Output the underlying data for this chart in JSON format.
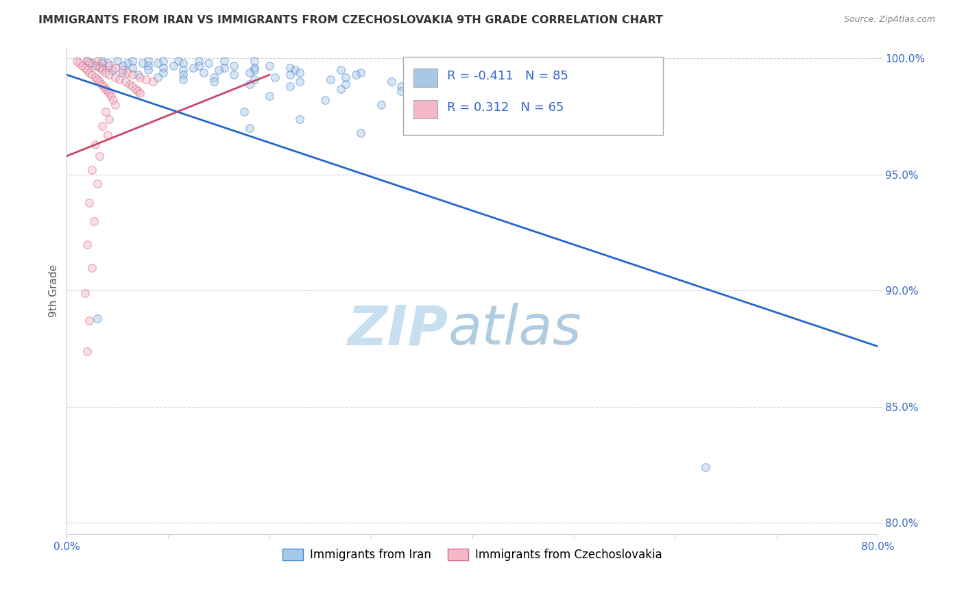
{
  "title": "IMMIGRANTS FROM IRAN VS IMMIGRANTS FROM CZECHOSLOVAKIA 9TH GRADE CORRELATION CHART",
  "source": "Source: ZipAtlas.com",
  "ylabel": "9th Grade",
  "xlim": [
    0.0,
    0.8
  ],
  "ylim": [
    0.795,
    1.005
  ],
  "x_ticks": [
    0.0,
    0.1,
    0.2,
    0.3,
    0.4,
    0.5,
    0.6,
    0.7,
    0.8
  ],
  "x_tick_labels": [
    "0.0%",
    "",
    "",
    "",
    "",
    "",
    "",
    "",
    "80.0%"
  ],
  "y_ticks": [
    0.8,
    0.85,
    0.9,
    0.95,
    1.0
  ],
  "y_tick_labels": [
    "80.0%",
    "85.0%",
    "90.0%",
    "95.0%",
    "100.0%"
  ],
  "legend_r_entries": [
    {
      "color": "#a8c8e8",
      "R": "-0.411",
      "N": "85"
    },
    {
      "color": "#f4b8c8",
      "R": "0.312",
      "N": "65"
    }
  ],
  "legend_bottom": [
    {
      "label": "Immigrants from Iran",
      "facecolor": "#a8c8e8",
      "edgecolor": "#4488cc"
    },
    {
      "label": "Immigrants from Czechoslovakia",
      "facecolor": "#f4b8c8",
      "edgecolor": "#dd6688"
    }
  ],
  "r_text_color": "#3366cc",
  "blue_line": [
    [
      0.0,
      0.993
    ],
    [
      0.8,
      0.876
    ]
  ],
  "pink_line": [
    [
      0.0,
      0.958
    ],
    [
      0.2,
      0.993
    ]
  ],
  "blue_dots": [
    [
      0.02,
      0.999
    ],
    [
      0.035,
      0.999
    ],
    [
      0.05,
      0.999
    ],
    [
      0.065,
      0.999
    ],
    [
      0.08,
      0.999
    ],
    [
      0.095,
      0.999
    ],
    [
      0.11,
      0.999
    ],
    [
      0.13,
      0.999
    ],
    [
      0.155,
      0.999
    ],
    [
      0.185,
      0.999
    ],
    [
      0.025,
      0.998
    ],
    [
      0.04,
      0.998
    ],
    [
      0.06,
      0.998
    ],
    [
      0.075,
      0.998
    ],
    [
      0.09,
      0.998
    ],
    [
      0.115,
      0.998
    ],
    [
      0.14,
      0.998
    ],
    [
      0.03,
      0.997
    ],
    [
      0.055,
      0.997
    ],
    [
      0.08,
      0.997
    ],
    [
      0.105,
      0.997
    ],
    [
      0.13,
      0.997
    ],
    [
      0.165,
      0.997
    ],
    [
      0.2,
      0.997
    ],
    [
      0.035,
      0.996
    ],
    [
      0.065,
      0.996
    ],
    [
      0.095,
      0.996
    ],
    [
      0.125,
      0.996
    ],
    [
      0.155,
      0.996
    ],
    [
      0.185,
      0.996
    ],
    [
      0.22,
      0.996
    ],
    [
      0.045,
      0.995
    ],
    [
      0.08,
      0.995
    ],
    [
      0.115,
      0.995
    ],
    [
      0.15,
      0.995
    ],
    [
      0.185,
      0.995
    ],
    [
      0.225,
      0.995
    ],
    [
      0.27,
      0.995
    ],
    [
      0.055,
      0.994
    ],
    [
      0.095,
      0.994
    ],
    [
      0.135,
      0.994
    ],
    [
      0.18,
      0.994
    ],
    [
      0.23,
      0.994
    ],
    [
      0.29,
      0.994
    ],
    [
      0.07,
      0.993
    ],
    [
      0.115,
      0.993
    ],
    [
      0.165,
      0.993
    ],
    [
      0.22,
      0.993
    ],
    [
      0.285,
      0.993
    ],
    [
      0.355,
      0.993
    ],
    [
      0.09,
      0.992
    ],
    [
      0.145,
      0.992
    ],
    [
      0.205,
      0.992
    ],
    [
      0.275,
      0.992
    ],
    [
      0.115,
      0.991
    ],
    [
      0.185,
      0.991
    ],
    [
      0.26,
      0.991
    ],
    [
      0.345,
      0.991
    ],
    [
      0.145,
      0.99
    ],
    [
      0.23,
      0.99
    ],
    [
      0.32,
      0.99
    ],
    [
      0.18,
      0.989
    ],
    [
      0.275,
      0.989
    ],
    [
      0.38,
      0.989
    ],
    [
      0.22,
      0.988
    ],
    [
      0.33,
      0.988
    ],
    [
      0.27,
      0.987
    ],
    [
      0.39,
      0.987
    ],
    [
      0.33,
      0.986
    ],
    [
      0.45,
      0.986
    ],
    [
      0.2,
      0.984
    ],
    [
      0.255,
      0.982
    ],
    [
      0.31,
      0.98
    ],
    [
      0.175,
      0.977
    ],
    [
      0.23,
      0.974
    ],
    [
      0.18,
      0.97
    ],
    [
      0.29,
      0.968
    ],
    [
      0.03,
      0.888
    ],
    [
      0.63,
      0.824
    ]
  ],
  "pink_dots": [
    [
      0.01,
      0.999
    ],
    [
      0.02,
      0.999
    ],
    [
      0.03,
      0.999
    ],
    [
      0.012,
      0.998
    ],
    [
      0.022,
      0.998
    ],
    [
      0.035,
      0.998
    ],
    [
      0.015,
      0.997
    ],
    [
      0.028,
      0.997
    ],
    [
      0.042,
      0.997
    ],
    [
      0.018,
      0.996
    ],
    [
      0.032,
      0.996
    ],
    [
      0.048,
      0.996
    ],
    [
      0.02,
      0.995
    ],
    [
      0.035,
      0.995
    ],
    [
      0.055,
      0.995
    ],
    [
      0.022,
      0.994
    ],
    [
      0.038,
      0.994
    ],
    [
      0.06,
      0.994
    ],
    [
      0.025,
      0.993
    ],
    [
      0.042,
      0.993
    ],
    [
      0.065,
      0.993
    ],
    [
      0.028,
      0.992
    ],
    [
      0.048,
      0.992
    ],
    [
      0.072,
      0.992
    ],
    [
      0.03,
      0.991
    ],
    [
      0.052,
      0.991
    ],
    [
      0.078,
      0.991
    ],
    [
      0.032,
      0.99
    ],
    [
      0.058,
      0.99
    ],
    [
      0.085,
      0.99
    ],
    [
      0.034,
      0.989
    ],
    [
      0.062,
      0.989
    ],
    [
      0.036,
      0.988
    ],
    [
      0.065,
      0.988
    ],
    [
      0.038,
      0.987
    ],
    [
      0.068,
      0.987
    ],
    [
      0.04,
      0.986
    ],
    [
      0.07,
      0.986
    ],
    [
      0.042,
      0.985
    ],
    [
      0.072,
      0.985
    ],
    [
      0.044,
      0.984
    ],
    [
      0.046,
      0.982
    ],
    [
      0.048,
      0.98
    ],
    [
      0.038,
      0.977
    ],
    [
      0.042,
      0.974
    ],
    [
      0.035,
      0.971
    ],
    [
      0.04,
      0.967
    ],
    [
      0.028,
      0.963
    ],
    [
      0.032,
      0.958
    ],
    [
      0.025,
      0.952
    ],
    [
      0.03,
      0.946
    ],
    [
      0.022,
      0.938
    ],
    [
      0.027,
      0.93
    ],
    [
      0.02,
      0.92
    ],
    [
      0.025,
      0.91
    ],
    [
      0.018,
      0.899
    ],
    [
      0.022,
      0.887
    ],
    [
      0.02,
      0.874
    ]
  ],
  "dot_size": 70,
  "dot_alpha": 0.45,
  "line_color_blue": "#2266cc",
  "line_color_pink": "#cc4466",
  "grid_color": "#cccccc",
  "background_color": "#ffffff",
  "watermark_text1": "ZIP",
  "watermark_text2": "atlas",
  "watermark_color1": "#c8dff0",
  "watermark_color2": "#b0cce0"
}
